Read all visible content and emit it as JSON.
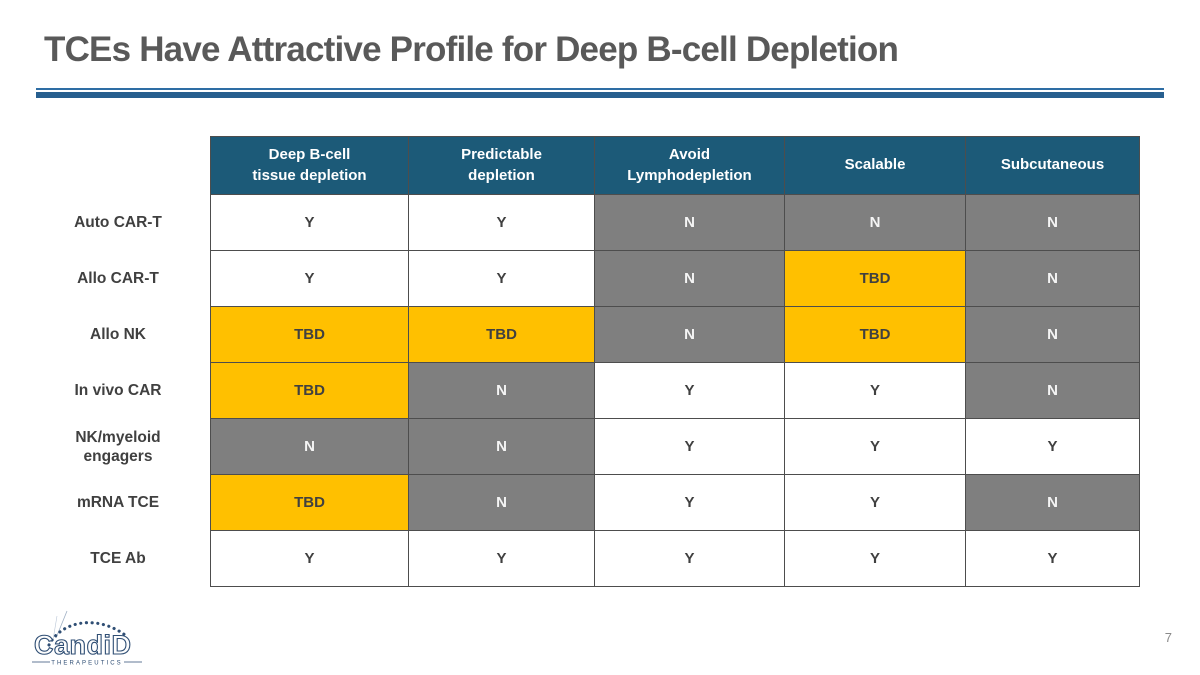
{
  "slide": {
    "title": "TCEs Have Attractive Profile for Deep B-cell Depletion",
    "page_number": "7"
  },
  "logo": {
    "brand": "CandiD",
    "subtext": "THERAPEUTICS"
  },
  "colors": {
    "header_bg": "#1C5A78",
    "yes_bg": "#FFFFFF",
    "no_bg": "#7F7F7F",
    "tbd_bg": "#FFC000",
    "accent_line_thin": "#2E6DA4",
    "accent_line_thick": "#275F8F",
    "title_text": "#595959",
    "cell_text_dark": "#404040",
    "cell_text_light": "#F5F5F5",
    "grid_border": "#4D4D4D",
    "logo_navy": "#2F4E74"
  },
  "chart_data": {
    "type": "table",
    "title": "TCEs Have Attractive Profile for Deep B-cell Depletion",
    "columns": [
      "Deep B-cell\ntissue depletion",
      "Predictable\ndepletion",
      "Avoid\nLymphodepletion",
      "Scalable",
      "Subcutaneous"
    ],
    "rows": [
      {
        "label": "Auto CAR-T",
        "cells": [
          "Y",
          "Y",
          "N",
          "N",
          "N"
        ]
      },
      {
        "label": "Allo CAR-T",
        "cells": [
          "Y",
          "Y",
          "N",
          "TBD",
          "N"
        ]
      },
      {
        "label": "Allo NK",
        "cells": [
          "TBD",
          "TBD",
          "N",
          "TBD",
          "N"
        ]
      },
      {
        "label": "In vivo CAR",
        "cells": [
          "TBD",
          "N",
          "Y",
          "Y",
          "N"
        ]
      },
      {
        "label": "NK/myeloid\nengagers",
        "cells": [
          "N",
          "N",
          "Y",
          "Y",
          "Y"
        ]
      },
      {
        "label": "mRNA TCE",
        "cells": [
          "TBD",
          "N",
          "Y",
          "Y",
          "N"
        ]
      },
      {
        "label": "TCE Ab",
        "cells": [
          "Y",
          "Y",
          "Y",
          "Y",
          "Y"
        ]
      }
    ],
    "cell_value_styles": {
      "Y": "white",
      "N": "gray",
      "TBD": "amber"
    }
  }
}
